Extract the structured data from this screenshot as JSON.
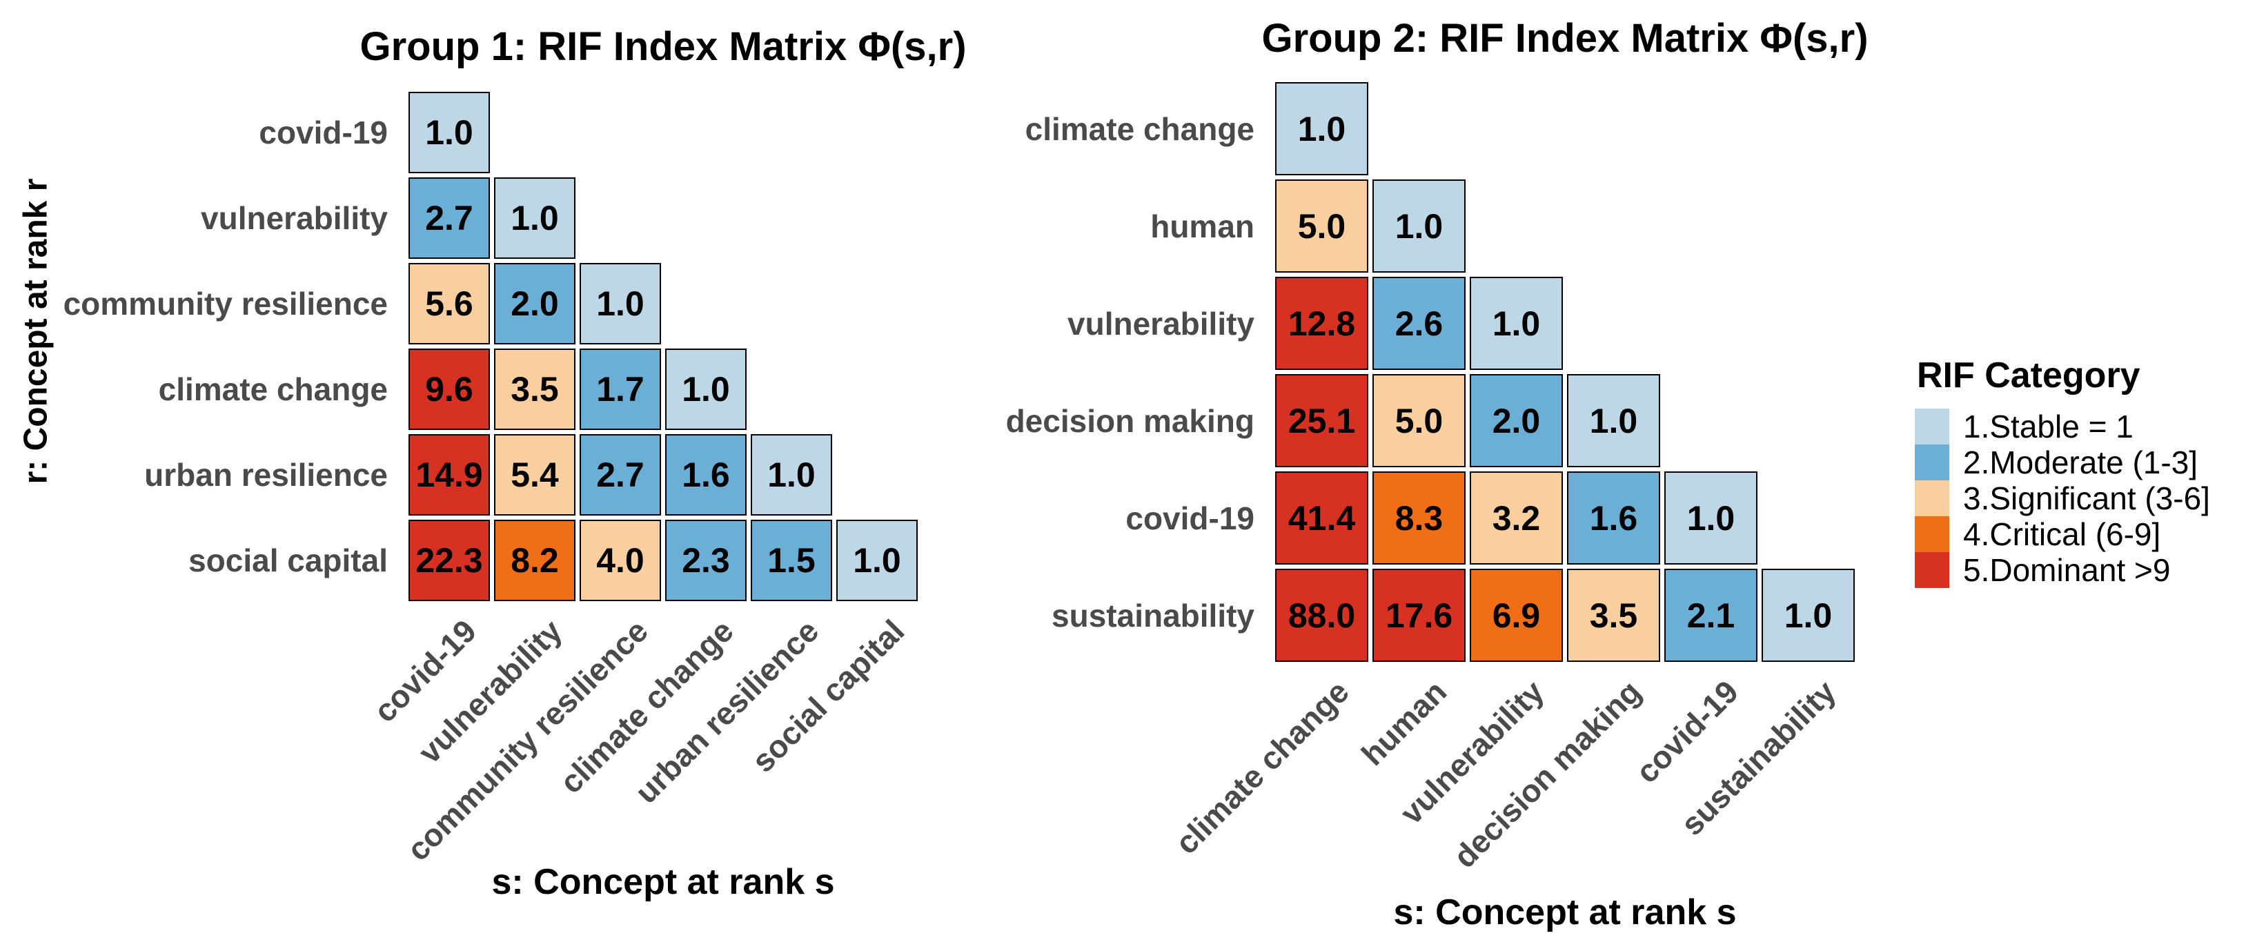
{
  "legend": {
    "title": "RIF Category",
    "items": [
      {
        "label": "1.Stable = 1",
        "color": "#BDD7E7"
      },
      {
        "label": "2.Moderate (1-3]",
        "color": "#6BAED6"
      },
      {
        "label": "3.Significant (3-6]",
        "color": "#FACFA0"
      },
      {
        "label": "4.Critical (6-9]",
        "color": "#F06E15"
      },
      {
        "label": "5.Dominant >9",
        "color": "#D63122"
      }
    ]
  },
  "chart_data": [
    {
      "type": "heatmap",
      "shape": "lower-triangular",
      "title": "Group 1: RIF Index Matrix Φ(s,r)",
      "xlabel": "s: Concept at rank s",
      "ylabel": "r: Concept at rank r",
      "categories": [
        "covid-19",
        "vulnerability",
        "community resilience",
        "climate change",
        "urban resilience",
        "social capital"
      ],
      "values": [
        [
          1.0
        ],
        [
          2.7,
          1.0
        ],
        [
          5.6,
          2.0,
          1.0
        ],
        [
          9.6,
          3.5,
          1.7,
          1.0
        ],
        [
          14.9,
          5.4,
          2.7,
          1.6,
          1.0
        ],
        [
          22.3,
          8.2,
          4.0,
          2.3,
          1.5,
          1.0
        ]
      ],
      "value_decimals": 1
    },
    {
      "type": "heatmap",
      "shape": "lower-triangular",
      "title": "Group 2: RIF Index Matrix Φ(s,r)",
      "xlabel": "s: Concept at rank s",
      "ylabel": "",
      "categories": [
        "climate change",
        "human",
        "vulnerability",
        "decision making",
        "covid-19",
        "sustainability"
      ],
      "values": [
        [
          1.0
        ],
        [
          5.0,
          1.0
        ],
        [
          12.8,
          2.6,
          1.0
        ],
        [
          25.1,
          5.0,
          2.0,
          1.0
        ],
        [
          41.4,
          8.3,
          3.2,
          1.6,
          1.0
        ],
        [
          88.0,
          17.6,
          6.9,
          3.5,
          2.1,
          1.0
        ]
      ],
      "value_decimals": 1
    }
  ]
}
